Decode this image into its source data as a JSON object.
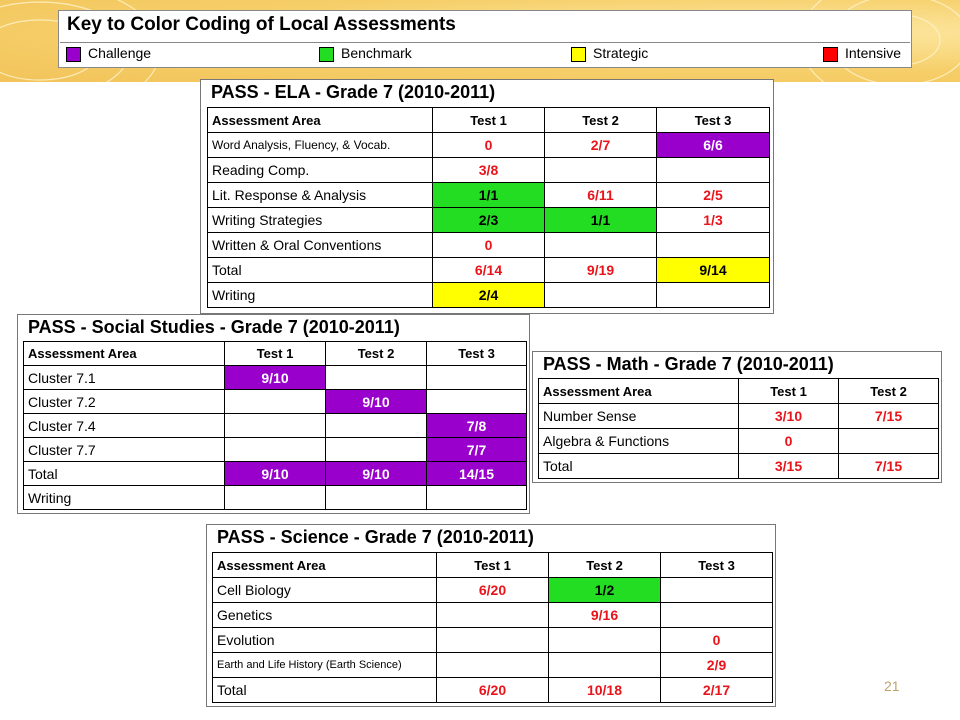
{
  "key": {
    "title": "Key to Color Coding of Local Assessments",
    "items": [
      {
        "label": "Challenge",
        "color": "#9900cc"
      },
      {
        "label": "Benchmark",
        "color": "#22dd22"
      },
      {
        "label": "Strategic",
        "color": "#ffff00"
      },
      {
        "label": "Intensive",
        "color": "#ff0000"
      }
    ]
  },
  "ela": {
    "title": "PASS - ELA - Grade 7 (2010-2011)",
    "headers": [
      "Assessment Area",
      "Test 1",
      "Test 2",
      "Test 3"
    ],
    "rows": [
      {
        "area": "Word Analysis, Fluency, & Vocab.",
        "t1": "0",
        "t2": "2/7",
        "t3": "6/6"
      },
      {
        "area": "Reading Comp.",
        "t1": "3/8",
        "t2": "",
        "t3": ""
      },
      {
        "area": "Lit. Response & Analysis",
        "t1": "1/1",
        "t2": "6/11",
        "t3": "2/5"
      },
      {
        "area": "Writing Strategies",
        "t1": "2/3",
        "t2": "1/1",
        "t3": "1/3"
      },
      {
        "area": "Written & Oral Conventions",
        "t1": "0",
        "t2": "",
        "t3": ""
      },
      {
        "area": "Total",
        "t1": "6/14",
        "t2": "9/19",
        "t3": "9/14"
      },
      {
        "area": "Writing",
        "t1": "2/4",
        "t2": "",
        "t3": ""
      }
    ]
  },
  "social": {
    "title": "PASS - Social Studies - Grade 7 (2010-2011)",
    "headers": [
      "Assessment Area",
      "Test 1",
      "Test 2",
      "Test 3"
    ],
    "rows": [
      {
        "area": "Cluster 7.1",
        "t1": "9/10",
        "t2": "",
        "t3": ""
      },
      {
        "area": "Cluster 7.2",
        "t1": "",
        "t2": "9/10",
        "t3": ""
      },
      {
        "area": "Cluster 7.4",
        "t1": "",
        "t2": "",
        "t3": "7/8"
      },
      {
        "area": "Cluster 7.7",
        "t1": "",
        "t2": "",
        "t3": "7/7"
      },
      {
        "area": "Total",
        "t1": "9/10",
        "t2": "9/10",
        "t3": "14/15"
      },
      {
        "area": "Writing",
        "t1": "",
        "t2": "",
        "t3": ""
      }
    ]
  },
  "math": {
    "title": "PASS - Math - Grade 7 (2010-2011)",
    "headers": [
      "Assessment Area",
      "Test 1",
      "Test 2"
    ],
    "rows": [
      {
        "area": "Number Sense",
        "t1": "3/10",
        "t2": "7/15"
      },
      {
        "area": "Algebra & Functions",
        "t1": "0",
        "t2": ""
      },
      {
        "area": "Total",
        "t1": "3/15",
        "t2": "7/15"
      }
    ]
  },
  "science": {
    "title": "PASS - Science - Grade 7 (2010-2011)",
    "headers": [
      "Assessment Area",
      "Test 1",
      "Test 2",
      "Test 3"
    ],
    "rows": [
      {
        "area": "Cell Biology",
        "t1": "6/20",
        "t2": "1/2",
        "t3": ""
      },
      {
        "area": "Genetics",
        "t1": "",
        "t2": "9/16",
        "t3": ""
      },
      {
        "area": "Evolution",
        "t1": "",
        "t2": "",
        "t3": "0"
      },
      {
        "area": "Earth and Life History (Earth Science)",
        "t1": "",
        "t2": "",
        "t3": "2/9"
      },
      {
        "area": "Total",
        "t1": "6/20",
        "t2": "10/18",
        "t3": "2/17"
      }
    ]
  },
  "page_number": "21"
}
